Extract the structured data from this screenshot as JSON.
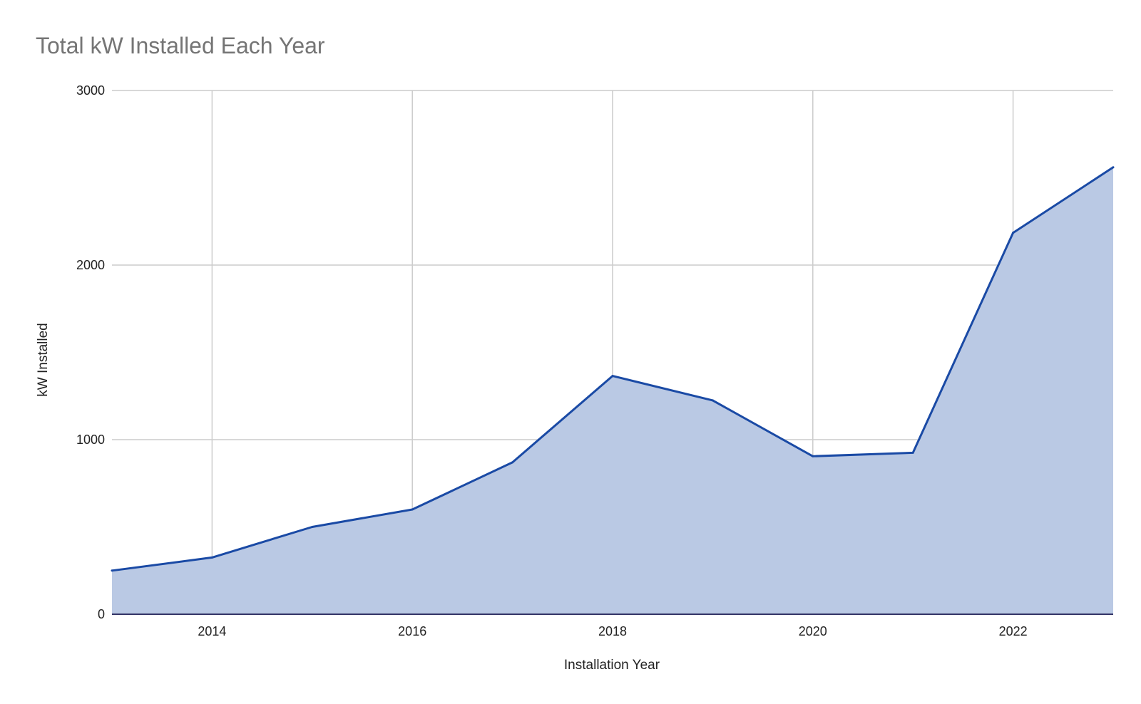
{
  "chart_data": {
    "type": "area",
    "title": "Total kW Installed Each Year",
    "xlabel": "Installation Year",
    "ylabel": "kW Installed",
    "x": [
      2013,
      2014,
      2015,
      2016,
      2017,
      2018,
      2019,
      2020,
      2021,
      2022,
      2023
    ],
    "series": [
      {
        "values": [
          250,
          325,
          500,
          600,
          870,
          1365,
          1225,
          905,
          925,
          2185,
          2560
        ]
      }
    ],
    "xlim": [
      2013,
      2023
    ],
    "ylim": [
      0,
      3000
    ],
    "x_ticks": [
      "2014",
      "2016",
      "2018",
      "2020",
      "2022"
    ],
    "y_ticks": [
      "0",
      "1000",
      "2000",
      "3000"
    ],
    "grid": true,
    "legend": "none",
    "colors": {
      "line": "#1a4aa5",
      "fill": "#bac9e4",
      "title": "#757575"
    }
  }
}
